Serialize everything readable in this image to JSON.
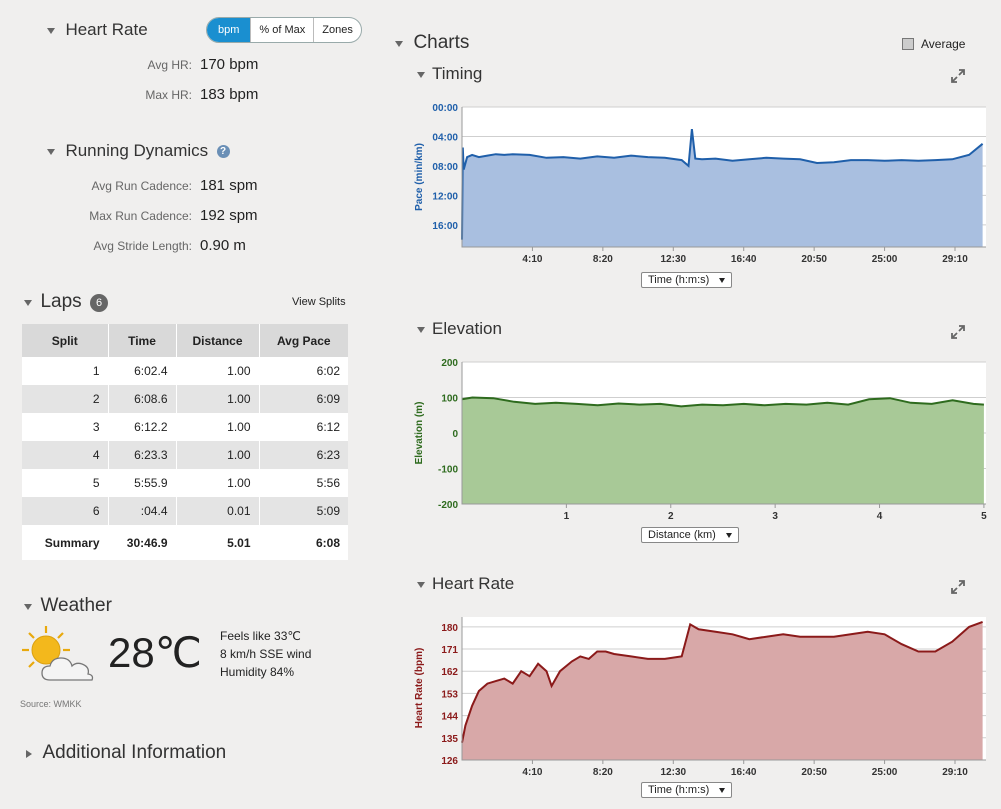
{
  "heart_rate": {
    "title": "Heart Rate",
    "toggle": [
      "bpm",
      "% of Max",
      "Zones"
    ],
    "stats": [
      {
        "label": "Avg HR:",
        "value": "170 bpm"
      },
      {
        "label": "Max HR:",
        "value": "183 bpm"
      }
    ]
  },
  "running_dynamics": {
    "title": "Running Dynamics",
    "info": "?",
    "stats": [
      {
        "label": "Avg Run Cadence:",
        "value": "181 spm"
      },
      {
        "label": "Max Run Cadence:",
        "value": "192 spm"
      },
      {
        "label": "Avg Stride Length:",
        "value": "0.90 m"
      }
    ]
  },
  "laps": {
    "title": "Laps",
    "count": "6",
    "view_splits": "View Splits",
    "headers": [
      "Split",
      "Time",
      "Distance",
      "Avg Pace"
    ],
    "rows": [
      [
        "1",
        "6:02.4",
        "1.00",
        "6:02"
      ],
      [
        "2",
        "6:08.6",
        "1.00",
        "6:09"
      ],
      [
        "3",
        "6:12.2",
        "1.00",
        "6:12"
      ],
      [
        "4",
        "6:23.3",
        "1.00",
        "6:23"
      ],
      [
        "5",
        "5:55.9",
        "1.00",
        "5:56"
      ],
      [
        "6",
        ":04.4",
        "0.01",
        "5:09"
      ]
    ],
    "summary": [
      "Summary",
      "30:46.9",
      "5.01",
      "6:08"
    ]
  },
  "weather": {
    "title": "Weather",
    "temp": "28℃",
    "feels_like": "Feels like 33℃",
    "wind": "8 km/h SSE wind",
    "humidity": "Humidity 84%",
    "source": "Source: WMKK"
  },
  "additional": {
    "title": "Additional Information"
  },
  "charts": {
    "title": "Charts",
    "average_label": "Average"
  },
  "chart_data": [
    {
      "type": "area",
      "title": "Timing",
      "ylabel": "Pace (min/km)",
      "y_ticks": [
        "00:00",
        "04:00",
        "08:00",
        "12:00",
        "16:00"
      ],
      "x_ticks": [
        "4:10",
        "8:20",
        "12:30",
        "16:40",
        "20:50",
        "25:00",
        "29:10"
      ],
      "x_selector": "Time (h:m:s)",
      "ylim": [
        0,
        19
      ],
      "y_reversed": true,
      "x_units": "minutes",
      "xlim": [
        0,
        31
      ],
      "color": "#1f5faa",
      "fill": "#a9bfe0",
      "x": [
        0,
        0.05,
        0.1,
        0.3,
        0.6,
        1,
        1.5,
        2,
        2.5,
        3,
        4,
        5,
        6,
        7,
        8,
        9,
        10,
        11,
        12,
        13,
        13.4,
        13.6,
        13.8,
        14.2,
        15,
        16,
        17,
        18,
        19,
        20,
        21,
        22,
        23,
        24,
        25,
        26,
        27,
        28,
        29,
        30,
        30.8
      ],
      "y": [
        18,
        5.5,
        8.5,
        6.8,
        6.5,
        6.8,
        6.6,
        6.4,
        6.5,
        6.4,
        6.5,
        6.9,
        6.8,
        7.0,
        6.7,
        6.9,
        6.6,
        6.8,
        6.9,
        7.2,
        8.0,
        3.0,
        7.0,
        7.1,
        7.0,
        7.3,
        7.1,
        6.9,
        7.0,
        7.1,
        7.6,
        7.5,
        7.2,
        7.2,
        7.3,
        7.2,
        7.3,
        7.2,
        7.1,
        6.5,
        5.0
      ]
    },
    {
      "type": "area",
      "title": "Elevation",
      "ylabel": "Elevation (m)",
      "y_ticks": [
        "200",
        "100",
        "0",
        "-100",
        "-200"
      ],
      "x_ticks": [
        "1",
        "2",
        "3",
        "4",
        "5"
      ],
      "x_selector": "Distance (km)",
      "ylim": [
        -200,
        200
      ],
      "xlim": [
        0,
        5.02
      ],
      "color": "#2e6b1e",
      "fill": "#a8c997",
      "x": [
        0,
        0.1,
        0.3,
        0.5,
        0.7,
        0.9,
        1.1,
        1.3,
        1.5,
        1.7,
        1.9,
        2.1,
        2.3,
        2.5,
        2.7,
        2.9,
        3.1,
        3.3,
        3.5,
        3.7,
        3.9,
        4.1,
        4.3,
        4.5,
        4.7,
        4.9,
        5.0
      ],
      "y": [
        95,
        100,
        98,
        88,
        82,
        85,
        82,
        78,
        83,
        80,
        82,
        75,
        80,
        78,
        82,
        78,
        82,
        80,
        85,
        80,
        95,
        98,
        85,
        82,
        92,
        82,
        80
      ]
    },
    {
      "type": "area",
      "title": "Heart Rate",
      "ylabel": "Heart Rate (bpm)",
      "y_ticks": [
        "180",
        "171",
        "162",
        "153",
        "144",
        "135",
        "126"
      ],
      "x_ticks": [
        "4:10",
        "8:20",
        "12:30",
        "16:40",
        "20:50",
        "25:00",
        "29:10"
      ],
      "x_selector": "Time (h:m:s)",
      "ylim": [
        126,
        184
      ],
      "xlim": [
        0,
        31
      ],
      "color": "#8b1a1a",
      "fill": "#d8a8a8",
      "x": [
        0,
        0.2,
        0.6,
        1,
        1.5,
        2,
        2.5,
        3,
        3.5,
        4,
        4.5,
        5,
        5.3,
        5.8,
        6.5,
        7,
        7.5,
        8,
        8.5,
        9,
        10,
        11,
        12,
        13,
        13.5,
        14,
        15,
        16,
        17,
        18,
        19,
        20,
        21,
        22,
        23,
        24,
        25,
        26,
        27,
        28,
        29,
        30,
        30.8
      ],
      "y": [
        133,
        140,
        148,
        154,
        157,
        158,
        159,
        157,
        162,
        160,
        165,
        162,
        156,
        162,
        166,
        168,
        167,
        170,
        170,
        169,
        168,
        167,
        167,
        168,
        181,
        179,
        178,
        177,
        175,
        176,
        177,
        176,
        176,
        176,
        177,
        178,
        177,
        173,
        170,
        170,
        174,
        180,
        182
      ]
    }
  ]
}
